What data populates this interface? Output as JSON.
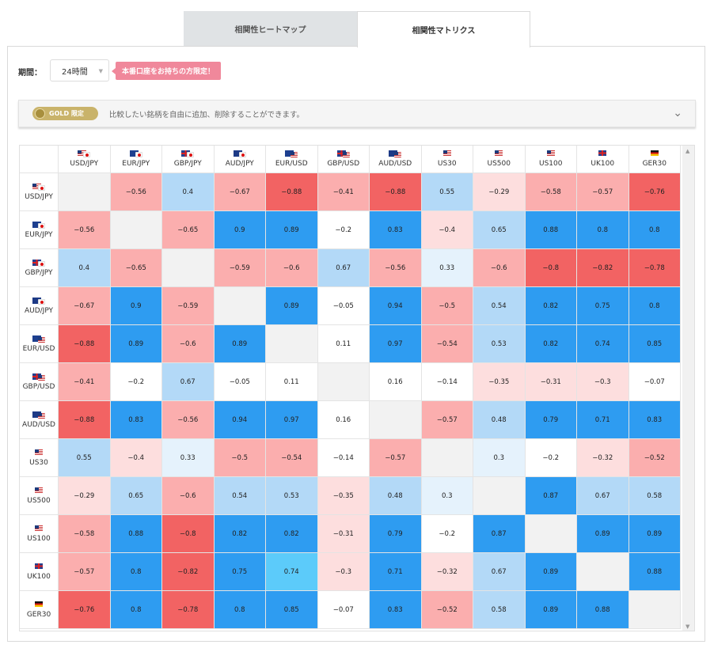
{
  "tabs": [
    {
      "label": "相関性ヒートマップ"
    },
    {
      "label": "相関性マトリクス"
    }
  ],
  "period": {
    "label": "期間：",
    "value": "24時間"
  },
  "limited_badge": "本番口座をお持ちの方限定！",
  "gold_bar": {
    "badge": "GOLD 限定",
    "description": "比較したい銘柄を自由に追加、削除することができます。"
  },
  "colors": {
    "strong_pos": "#2e9cf1",
    "mid_pos": "#b3d9f7",
    "weak_pos": "#e5f2fc",
    "strong_neg": "#f26363",
    "mid_neg": "#fbaeae",
    "weak_neg": "#fddede",
    "highlight": "#5ccbfa",
    "diag": "#f2f2f2",
    "neutral": "#ffffff"
  },
  "instruments": [
    "USD/JPY",
    "EUR/JPY",
    "GBP/JPY",
    "AUD/JPY",
    "EUR/USD",
    "GBP/USD",
    "AUD/USD",
    "US30",
    "US500",
    "US100",
    "UK100",
    "GER30"
  ],
  "flags": [
    [
      "us",
      "jp"
    ],
    [
      "eu",
      "jp"
    ],
    [
      "gb",
      "jp"
    ],
    [
      "au",
      "jp"
    ],
    [
      "eu",
      "us"
    ],
    [
      "gb",
      "us"
    ],
    [
      "au",
      "us"
    ],
    [
      "us-idx"
    ],
    [
      "us-idx"
    ],
    [
      "us-idx"
    ],
    [
      "gb-idx"
    ],
    [
      "de"
    ]
  ],
  "matrix": [
    [
      null,
      "−0.56",
      "0.4",
      "−0.67",
      "−0.88",
      "−0.41",
      "−0.88",
      "0.55",
      "−0.29",
      "−0.58",
      "−0.57",
      "−0.76"
    ],
    [
      "−0.56",
      null,
      "−0.65",
      "0.9",
      "0.89",
      "−0.2",
      "0.83",
      "−0.4",
      "0.65",
      "0.88",
      "0.8",
      "0.8"
    ],
    [
      "0.4",
      "−0.65",
      null,
      "−0.59",
      "−0.6",
      "0.67",
      "−0.56",
      "0.33",
      "−0.6",
      "−0.8",
      "−0.82",
      "−0.78"
    ],
    [
      "−0.67",
      "0.9",
      "−0.59",
      null,
      "0.89",
      "−0.05",
      "0.94",
      "−0.5",
      "0.54",
      "0.82",
      "0.75",
      "0.8"
    ],
    [
      "−0.88",
      "0.89",
      "−0.6",
      "0.89",
      null,
      "0.11",
      "0.97",
      "−0.54",
      "0.53",
      "0.82",
      "0.74",
      "0.85"
    ],
    [
      "−0.41",
      "−0.2",
      "0.67",
      "−0.05",
      "0.11",
      null,
      "0.16",
      "−0.14",
      "−0.35",
      "−0.31",
      "−0.3",
      "−0.07"
    ],
    [
      "−0.88",
      "0.83",
      "−0.56",
      "0.94",
      "0.97",
      "0.16",
      null,
      "−0.57",
      "0.48",
      "0.79",
      "0.71",
      "0.83"
    ],
    [
      "0.55",
      "−0.4",
      "0.33",
      "−0.5",
      "−0.54",
      "−0.14",
      "−0.57",
      null,
      "0.3",
      "−0.2",
      "−0.32",
      "−0.52"
    ],
    [
      "−0.29",
      "0.65",
      "−0.6",
      "0.54",
      "0.53",
      "−0.35",
      "0.48",
      "0.3",
      null,
      "0.87",
      "0.67",
      "0.58"
    ],
    [
      "−0.58",
      "0.88",
      "−0.8",
      "0.82",
      "0.82",
      "−0.31",
      "0.79",
      "−0.2",
      "0.87",
      null,
      "0.89",
      "0.89"
    ],
    [
      "−0.57",
      "0.8",
      "−0.82",
      "0.75",
      "0.74",
      "−0.3",
      "0.71",
      "−0.32",
      "0.67",
      "0.89",
      null,
      "0.88"
    ],
    [
      "−0.76",
      "0.8",
      "−0.78",
      "0.8",
      "0.85",
      "−0.07",
      "0.83",
      "−0.52",
      "0.58",
      "0.89",
      "0.88",
      null
    ]
  ],
  "color_codes": [
    [
      "diag",
      "mid_neg",
      "mid_pos",
      "mid_neg",
      "strong_neg",
      "mid_neg",
      "strong_neg",
      "mid_pos",
      "weak_neg",
      "mid_neg",
      "mid_neg",
      "strong_neg"
    ],
    [
      "mid_neg",
      "diag",
      "mid_neg",
      "strong_pos",
      "strong_pos",
      "neutral",
      "strong_pos",
      "weak_neg",
      "mid_pos",
      "strong_pos",
      "strong_pos",
      "strong_pos"
    ],
    [
      "mid_pos",
      "mid_neg",
      "diag",
      "mid_neg",
      "mid_neg",
      "mid_pos",
      "mid_neg",
      "weak_pos",
      "mid_neg",
      "strong_neg",
      "strong_neg",
      "strong_neg"
    ],
    [
      "mid_neg",
      "strong_pos",
      "mid_neg",
      "diag",
      "strong_pos",
      "neutral",
      "strong_pos",
      "mid_neg",
      "mid_pos",
      "strong_pos",
      "strong_pos",
      "strong_pos"
    ],
    [
      "strong_neg",
      "strong_pos",
      "mid_neg",
      "strong_pos",
      "diag",
      "neutral",
      "strong_pos",
      "mid_neg",
      "mid_pos",
      "strong_pos",
      "strong_pos",
      "strong_pos"
    ],
    [
      "mid_neg",
      "neutral",
      "mid_pos",
      "neutral",
      "neutral",
      "diag",
      "neutral",
      "neutral",
      "weak_neg",
      "weak_neg",
      "weak_neg",
      "neutral"
    ],
    [
      "strong_neg",
      "strong_pos",
      "mid_neg",
      "strong_pos",
      "strong_pos",
      "neutral",
      "diag",
      "mid_neg",
      "mid_pos",
      "strong_pos",
      "strong_pos",
      "strong_pos"
    ],
    [
      "mid_pos",
      "weak_neg",
      "weak_pos",
      "mid_neg",
      "mid_neg",
      "neutral",
      "mid_neg",
      "diag",
      "weak_pos",
      "neutral",
      "weak_neg",
      "mid_neg"
    ],
    [
      "weak_neg",
      "mid_pos",
      "mid_neg",
      "mid_pos",
      "mid_pos",
      "weak_neg",
      "mid_pos",
      "weak_pos",
      "diag",
      "strong_pos",
      "mid_pos",
      "mid_pos"
    ],
    [
      "mid_neg",
      "strong_pos",
      "strong_neg",
      "strong_pos",
      "strong_pos",
      "weak_neg",
      "strong_pos",
      "neutral",
      "strong_pos",
      "diag",
      "strong_pos",
      "strong_pos"
    ],
    [
      "mid_neg",
      "strong_pos",
      "strong_neg",
      "strong_pos",
      "highlight",
      "weak_neg",
      "strong_pos",
      "weak_neg",
      "mid_pos",
      "strong_pos",
      "diag",
      "strong_pos"
    ],
    [
      "strong_neg",
      "strong_pos",
      "strong_neg",
      "strong_pos",
      "strong_pos",
      "neutral",
      "strong_pos",
      "mid_neg",
      "mid_pos",
      "strong_pos",
      "strong_pos",
      "diag"
    ]
  ]
}
